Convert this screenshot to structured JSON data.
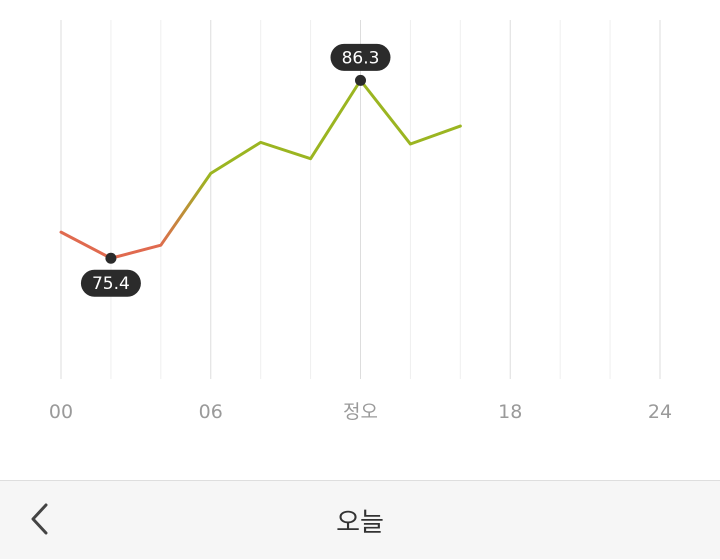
{
  "chart_data": {
    "type": "line",
    "x_axis": {
      "ticks": [
        {
          "value": 0,
          "label": "00"
        },
        {
          "value": 6,
          "label": "06"
        },
        {
          "value": 12,
          "label": "정오"
        },
        {
          "value": 18,
          "label": "18"
        },
        {
          "value": 24,
          "label": "24"
        }
      ],
      "range": [
        0,
        24
      ]
    },
    "y_range": [
      68,
      90
    ],
    "series": [
      {
        "x": [
          0,
          2,
          4,
          6,
          8,
          10,
          12,
          14,
          16
        ],
        "values": [
          77.0,
          75.4,
          76.2,
          80.6,
          82.5,
          81.5,
          86.3,
          82.4,
          83.5
        ]
      }
    ],
    "annotations": [
      {
        "x": 2,
        "value": 75.4,
        "label": "75.4",
        "placement": "below"
      },
      {
        "x": 12,
        "value": 86.3,
        "label": "86.3",
        "placement": "above"
      }
    ],
    "colors": {
      "low": "#e06a4f",
      "high": "#9bb521",
      "marker": "#2b2b2b",
      "grid": "#e6e6e6"
    }
  },
  "footer": {
    "back_icon": "chevron-left-icon",
    "title": "오늘"
  }
}
